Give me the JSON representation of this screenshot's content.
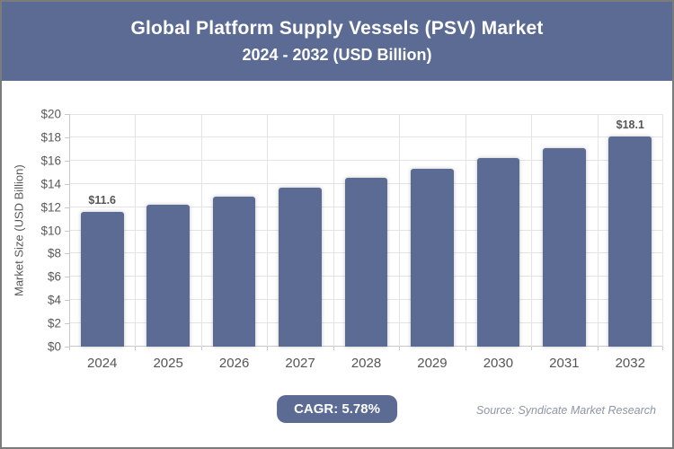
{
  "header": {
    "title": "Global Platform Supply Vessels (PSV) Market",
    "subtitle": "2024 - 2032 (USD Billion)"
  },
  "footer": {
    "cagr_label": "CAGR: 5.78%",
    "source": "Source: Syndicate Market Research"
  },
  "colors": {
    "accent": "#5B6B94",
    "grid": "#e4e4e4",
    "axis": "#c8c8c8",
    "tick_text": "#595959",
    "source_text": "#8d95a4",
    "frame_border": "#7b7b7b",
    "bar_label_text": "#565656"
  },
  "chart_data": {
    "type": "bar",
    "title": "Global Platform Supply Vessels (PSV) Market",
    "subtitle": "2024 - 2032 (USD Billion)",
    "categories": [
      "2024",
      "2025",
      "2026",
      "2027",
      "2028",
      "2029",
      "2030",
      "2031",
      "2032"
    ],
    "values": [
      11.6,
      12.2,
      12.9,
      13.7,
      14.5,
      15.3,
      16.2,
      17.1,
      18.1
    ],
    "data_labels": [
      "$11.6",
      "",
      "",
      "",
      "",
      "",
      "",
      "",
      "$18.1"
    ],
    "xlabel": "",
    "ylabel": "Market Size (USD Billion)",
    "ylim": [
      0,
      20
    ],
    "ytick_step": 2,
    "ytick_labels": [
      "$0",
      "$2",
      "$4",
      "$6",
      "$8",
      "$10",
      "$12",
      "$14",
      "$16",
      "$18",
      "$20"
    ],
    "grid": true,
    "legend": false,
    "bar_color": "#5B6B94",
    "bar_width_fraction": 0.65
  }
}
